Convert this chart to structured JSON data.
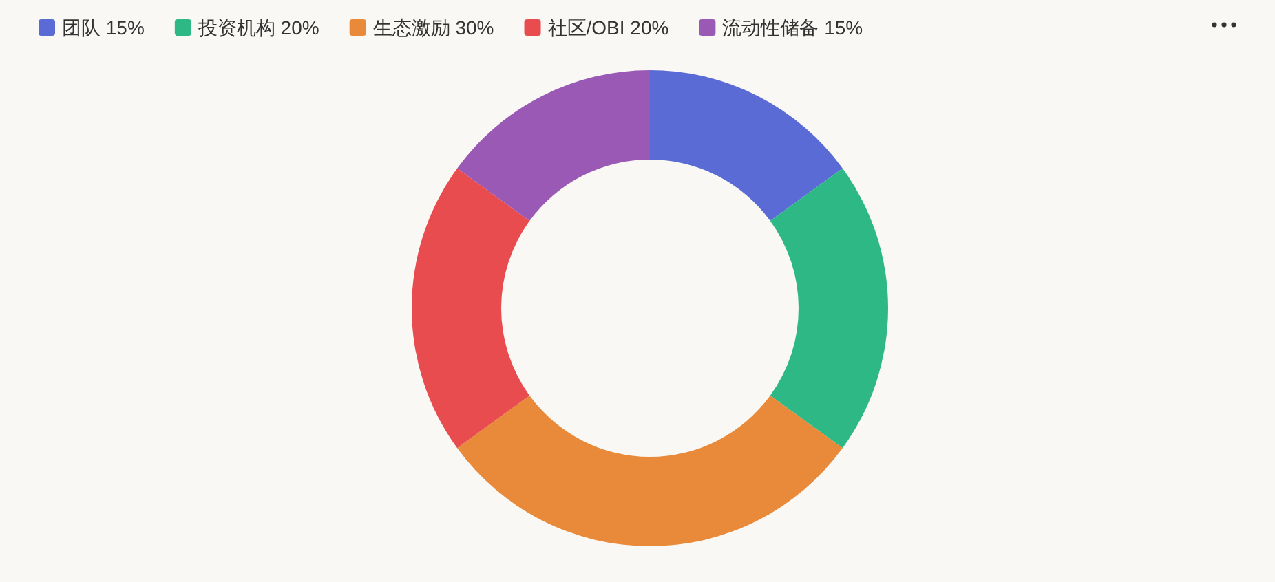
{
  "chart_data": {
    "type": "donut",
    "categories": [
      "团队 15%",
      "投资机构 20%",
      "生态激励 30%",
      "社区/OBI 20%",
      "流动性储备 15%"
    ],
    "values": [
      15,
      20,
      30,
      20,
      15
    ],
    "colors": [
      "#5b6bd5",
      "#2db885",
      "#e88a3a",
      "#e94c4f",
      "#9b59b6"
    ],
    "legend": "top left"
  }
}
